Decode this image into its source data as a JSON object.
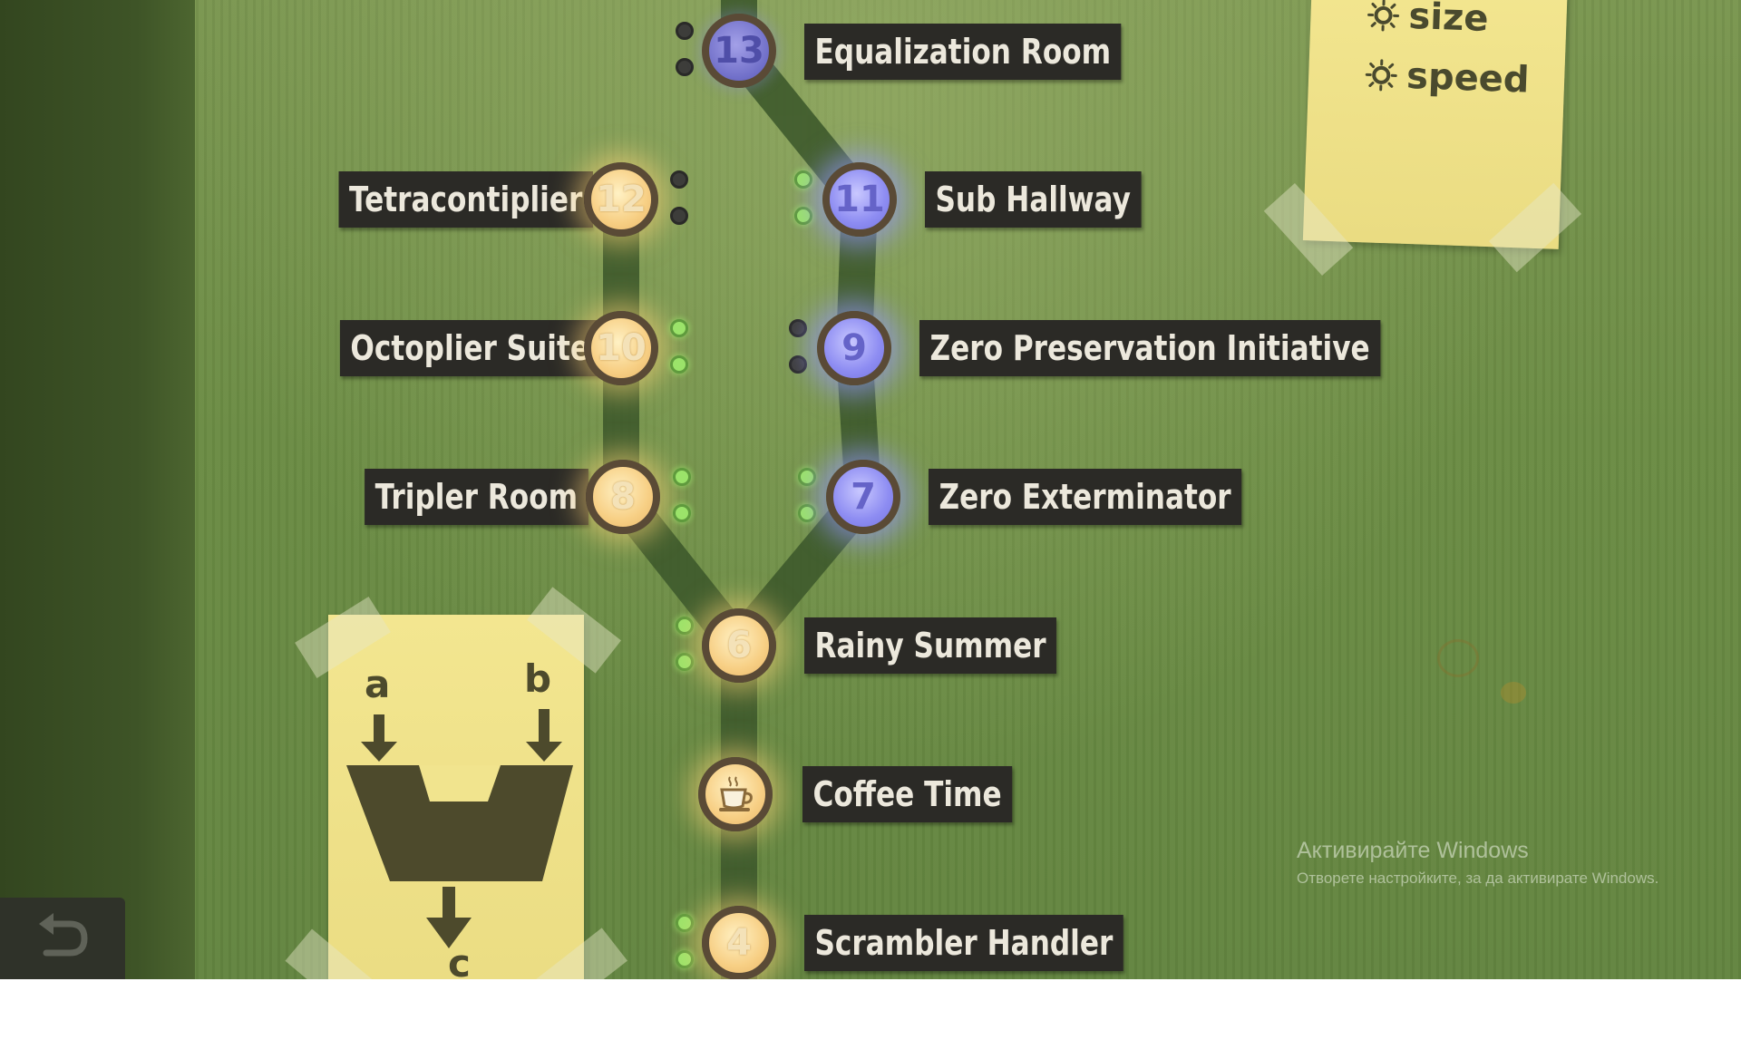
{
  "levels": [
    {
      "id": "13",
      "name": "Equalization Room",
      "state": "locked",
      "inputs": [
        "off",
        "off"
      ]
    },
    {
      "id": "12",
      "name": "Tetracontiplier",
      "state": "completed",
      "inputs": [
        "off",
        "off"
      ]
    },
    {
      "id": "11",
      "name": "Sub Hallway",
      "state": "available",
      "inputs": [
        "on",
        "on"
      ]
    },
    {
      "id": "10",
      "name": "Octoplier Suite",
      "state": "completed",
      "inputs": [
        "on",
        "on"
      ]
    },
    {
      "id": "9",
      "name": "Zero Preservation Initiative",
      "state": "available",
      "inputs": [
        "off",
        "off"
      ]
    },
    {
      "id": "8",
      "name": "Tripler Room",
      "state": "completed",
      "inputs": [
        "on",
        "on"
      ]
    },
    {
      "id": "7",
      "name": "Zero Exterminator",
      "state": "available",
      "inputs": [
        "on",
        "on"
      ]
    },
    {
      "id": "6",
      "name": "Rainy Summer",
      "state": "completed",
      "inputs": [
        "on",
        "on"
      ]
    },
    {
      "id": "5",
      "name": "Coffee Time",
      "state": "completed",
      "icon": "coffee-cup-icon",
      "inputs": []
    },
    {
      "id": "4",
      "name": "Scrambler Handler",
      "state": "completed",
      "inputs": [
        "on",
        "on"
      ]
    }
  ],
  "legend_note": {
    "items": [
      {
        "icon": "gear-icon",
        "label": "size"
      },
      {
        "icon": "gear-icon",
        "label": "speed"
      }
    ]
  },
  "diagram_note": {
    "input_a": "a",
    "input_b": "b",
    "output_c": "c"
  },
  "undo": {
    "icon": "undo-arrow-icon"
  },
  "watermark": {
    "title": "Активирайте Windows",
    "subtitle": "Отворете настройките, за да активирате Windows."
  },
  "colors": {
    "board": "#6b8c44",
    "completed_node": "#f7cf84",
    "available_node": "#8d8cf2",
    "label_bg": "#2b2a26",
    "input_on": "#9be36a",
    "input_off": "#3d3d3a"
  }
}
